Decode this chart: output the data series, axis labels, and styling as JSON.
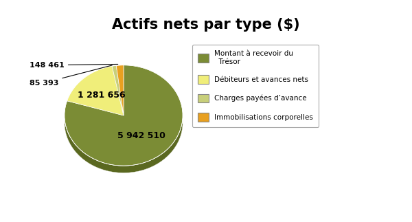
{
  "title": "Actifs nets par type ($)",
  "values": [
    5942510,
    1281656,
    85393,
    148461
  ],
  "labels_inside": [
    "5 942 510",
    "1 281 656"
  ],
  "labels_outside": [
    "85 393",
    "148 461"
  ],
  "slice_colors": [
    "#7b8c35",
    "#f0ee7a",
    "#c8cf7a",
    "#e8a020"
  ],
  "slice_colors_dark": [
    "#5a6820",
    "#b0ad50",
    "#909a50",
    "#b07010"
  ],
  "legend_labels": [
    "Montant à recevoir du\n  Trésor",
    "Débiteurs et avances nets",
    "Charges payées d’avance",
    "Immobilisations corporelles"
  ],
  "title_fontsize": 15,
  "background_color": "#ffffff",
  "startangle": 90,
  "depth": 0.12
}
